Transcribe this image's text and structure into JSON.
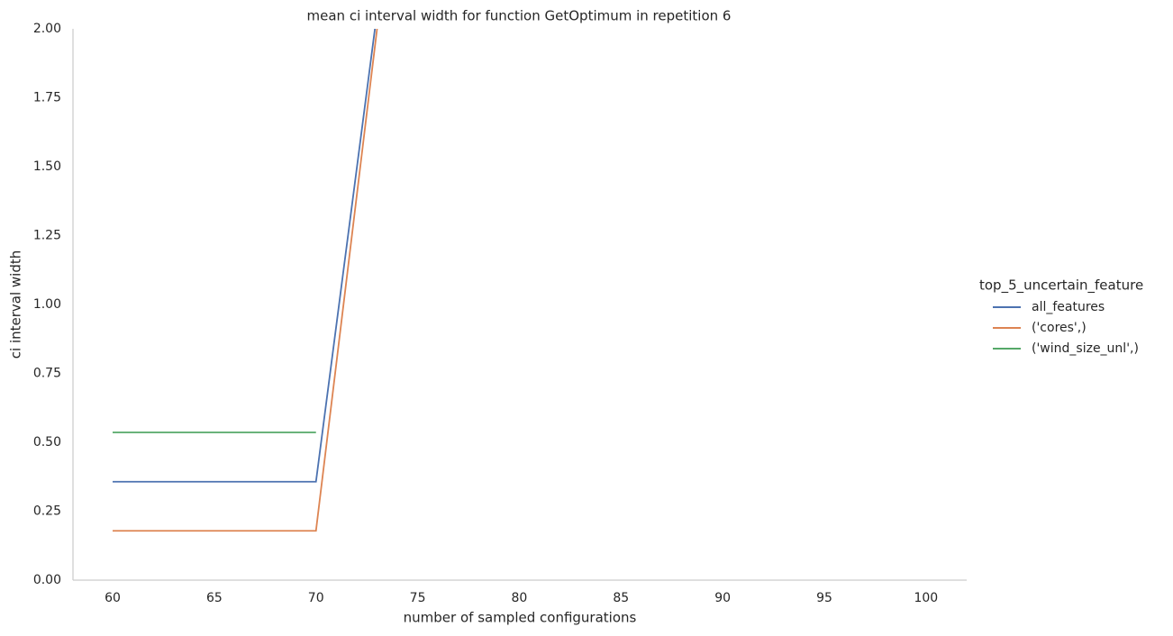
{
  "chart_data": {
    "type": "line",
    "title": "mean ci interval width for function GetOptimum in repetition 6",
    "xlabel": "number of sampled configurations",
    "ylabel": "ci interval width",
    "x": [
      60,
      65,
      70,
      75
    ],
    "series": [
      {
        "name": "all_features",
        "color": "#4c72b0",
        "values": [
          0.357,
          0.357,
          0.357,
          3.19
        ]
      },
      {
        "name": "('cores',)",
        "color": "#dd8452",
        "values": [
          0.179,
          0.179,
          0.179,
          3.21
        ]
      },
      {
        "name": "('wind_size_unl',)",
        "color": "#55a868",
        "values": [
          0.536,
          0.536,
          0.536,
          null
        ]
      }
    ],
    "legend_title": "top_5_uncertain_feature",
    "legend": "right",
    "xlim": [
      58.05,
      102
    ],
    "ylim": [
      0,
      2
    ],
    "xticks": [
      60,
      65,
      70,
      75,
      80,
      85,
      90,
      95,
      100
    ],
    "yticks": [
      {
        "value": 0,
        "label": "0.00"
      },
      {
        "value": 0.25,
        "label": "0.25"
      },
      {
        "value": 0.5,
        "label": "0.50"
      },
      {
        "value": 0.75,
        "label": "0.75"
      },
      {
        "value": 1,
        "label": "1.00"
      },
      {
        "value": 1.25,
        "label": "1.25"
      },
      {
        "value": 1.5,
        "label": "1.50"
      },
      {
        "value": 1.75,
        "label": "1.75"
      },
      {
        "value": 2,
        "label": "2.00"
      }
    ],
    "grid": false
  }
}
